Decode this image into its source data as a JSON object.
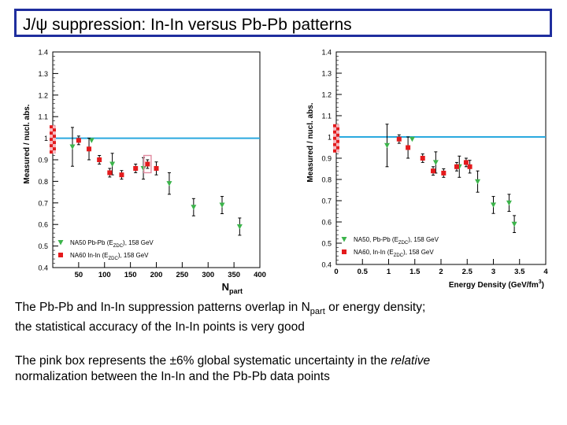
{
  "slide": {
    "title": "J/ψ suppression: In-In versus Pb-Pb patterns",
    "caption1_part1": "The Pb-Pb and In-In suppression patterns overlap in N",
    "caption1_sub": "part",
    "caption1_part2": " or energy density;",
    "caption1_line2": "the statistical accuracy of the In-In points is very good",
    "caption2_part1": "The pink box represents the ±6% global systematic uncertainty in the ",
    "caption2_italic": "relative",
    "caption2_line2": "normalization between the In-In and the Pb-Pb data points"
  },
  "colors": {
    "title_border": "#1f2e9e",
    "reference_line": "#2aa9df",
    "pbpb": "#3cb44b",
    "inin": "#e41a1c",
    "syst_box": "#e08aa0"
  },
  "chart_data": [
    {
      "type": "scatter",
      "ylabel": "Measured / nucl. abs.",
      "xlabel": "N",
      "xlabel_sub": "part",
      "xlim": [
        0,
        400
      ],
      "ylim": [
        0.4,
        1.4
      ],
      "xticks": [
        50,
        100,
        150,
        200,
        250,
        300,
        350,
        400
      ],
      "yticks": [
        0.4,
        0.5,
        0.6,
        0.7,
        0.8,
        0.9,
        1,
        1.1,
        1.2,
        1.3,
        1.4
      ],
      "reference_line": 1,
      "legend_position": "bottom-left",
      "series": [
        {
          "name": "NA50 Pb-Pb (E_ZDC), 158 GeV",
          "legend_text": "NA50 Pb-Pb (E",
          "legend_sub": "ZDC",
          "legend_tail": "), 158 GeV",
          "marker": "triangle",
          "points": [
            {
              "x": 38,
              "y": 0.96,
              "yerr": 0.09
            },
            {
              "x": 75,
              "y": 0.99,
              "yerr": 0.0
            },
            {
              "x": 115,
              "y": 0.88,
              "yerr": 0.05
            },
            {
              "x": 175,
              "y": 0.86,
              "yerr": 0.05
            },
            {
              "x": 225,
              "y": 0.79,
              "yerr": 0.05
            },
            {
              "x": 272,
              "y": 0.68,
              "yerr": 0.04
            },
            {
              "x": 327,
              "y": 0.69,
              "yerr": 0.04
            },
            {
              "x": 361,
              "y": 0.59,
              "yerr": 0.04
            }
          ]
        },
        {
          "name": "NA60 In-In (E_ZDC), 158 GeV",
          "legend_text": "NA60 In-In (E",
          "legend_sub": "ZDC",
          "legend_tail": "), 158 GeV",
          "marker": "square",
          "points": [
            {
              "x": 50,
              "y": 0.99,
              "yerr": 0.02
            },
            {
              "x": 70,
              "y": 0.95,
              "yerr": 0.05
            },
            {
              "x": 90,
              "y": 0.9,
              "yerr": 0.02
            },
            {
              "x": 110,
              "y": 0.84,
              "yerr": 0.02
            },
            {
              "x": 133,
              "y": 0.83,
              "yerr": 0.02
            },
            {
              "x": 160,
              "y": 0.86,
              "yerr": 0.02
            },
            {
              "x": 183,
              "y": 0.88,
              "yerr": 0.02
            },
            {
              "x": 200,
              "y": 0.86,
              "yerr": 0.03
            }
          ]
        }
      ],
      "syst_box": {
        "x": 183,
        "y": 0.88,
        "halfwidth": 7,
        "halfheight": 0.04
      }
    },
    {
      "type": "scatter",
      "ylabel": "Measured / nucl. abs.",
      "xlabel": "Energy Density (GeV/fm",
      "xlabel_sup": "3",
      "xlabel_tail": ")",
      "xlim": [
        0,
        4
      ],
      "ylim": [
        0.4,
        1.4
      ],
      "xticks": [
        0,
        0.5,
        1,
        1.5,
        2,
        2.5,
        3,
        3.5,
        4
      ],
      "yticks": [
        0.4,
        0.5,
        0.6,
        0.7,
        0.8,
        0.9,
        1,
        1.1,
        1.2,
        1.3,
        1.4
      ],
      "reference_line": 1,
      "legend_position": "bottom-left",
      "series": [
        {
          "name": "NA50, Pb-Pb (E_ZDC), 158 GeV",
          "legend_text": "NA50, Pb-Pb (E",
          "legend_sub": "ZDC",
          "legend_tail": "), 158 GeV",
          "marker": "triangle",
          "points": [
            {
              "x": 0.97,
              "y": 0.96,
              "yerr": 0.1
            },
            {
              "x": 1.45,
              "y": 0.99,
              "yerr": 0.0
            },
            {
              "x": 1.9,
              "y": 0.88,
              "yerr": 0.05
            },
            {
              "x": 2.35,
              "y": 0.86,
              "yerr": 0.05
            },
            {
              "x": 2.7,
              "y": 0.79,
              "yerr": 0.05
            },
            {
              "x": 3.0,
              "y": 0.68,
              "yerr": 0.04
            },
            {
              "x": 3.3,
              "y": 0.69,
              "yerr": 0.04
            },
            {
              "x": 3.4,
              "y": 0.59,
              "yerr": 0.04
            }
          ]
        },
        {
          "name": "NA60, In-In (E_ZDC), 158 GeV",
          "legend_text": "NA60, In-In (E",
          "legend_sub": "ZDC",
          "legend_tail": "), 158 GeV",
          "marker": "square",
          "points": [
            {
              "x": 1.2,
              "y": 0.99,
              "yerr": 0.02
            },
            {
              "x": 1.37,
              "y": 0.95,
              "yerr": 0.05
            },
            {
              "x": 1.65,
              "y": 0.9,
              "yerr": 0.02
            },
            {
              "x": 1.85,
              "y": 0.84,
              "yerr": 0.02
            },
            {
              "x": 2.05,
              "y": 0.83,
              "yerr": 0.02
            },
            {
              "x": 2.3,
              "y": 0.86,
              "yerr": 0.02
            },
            {
              "x": 2.48,
              "y": 0.88,
              "yerr": 0.02
            },
            {
              "x": 2.55,
              "y": 0.86,
              "yerr": 0.03
            }
          ]
        }
      ]
    }
  ]
}
